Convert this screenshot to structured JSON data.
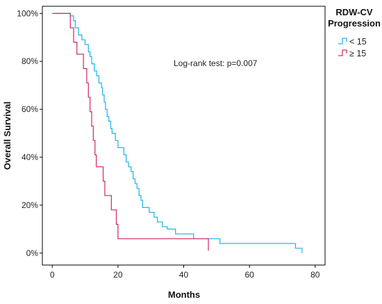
{
  "chart_data": {
    "type": "line",
    "subtype": "kaplan-meier step",
    "title": "",
    "xlabel": "Months",
    "ylabel": "Overall Survival",
    "xlim": [
      -3,
      83
    ],
    "ylim": [
      -5,
      103
    ],
    "x_ticks": [
      0,
      20,
      40,
      60,
      80
    ],
    "y_ticks": [
      0,
      20,
      40,
      60,
      80,
      100
    ],
    "y_tick_labels": [
      "0%",
      "20%",
      "40%",
      "60%",
      "80%",
      "100%"
    ],
    "grid": false,
    "legend": {
      "title_line1": "RDW-CV",
      "title_line2": "Progression",
      "placement": "top-right outside"
    },
    "annotation": "Log-rank test: p=0.007",
    "series": [
      {
        "name": "< 15",
        "color": "#29b8e6",
        "points": [
          [
            0,
            100
          ],
          [
            5.5,
            100
          ],
          [
            5.5,
            99
          ],
          [
            6.5,
            99
          ],
          [
            6.5,
            97
          ],
          [
            7,
            97
          ],
          [
            7,
            94
          ],
          [
            8,
            94
          ],
          [
            8,
            91
          ],
          [
            9,
            91
          ],
          [
            9,
            89
          ],
          [
            10,
            89
          ],
          [
            10,
            87
          ],
          [
            11,
            87
          ],
          [
            11,
            84
          ],
          [
            11.5,
            84
          ],
          [
            11.5,
            82
          ],
          [
            12,
            82
          ],
          [
            12,
            79
          ],
          [
            12.8,
            79
          ],
          [
            12.8,
            76
          ],
          [
            13.5,
            76
          ],
          [
            13.5,
            74
          ],
          [
            14.2,
            74
          ],
          [
            14.2,
            71
          ],
          [
            15,
            71
          ],
          [
            15,
            69
          ],
          [
            15.3,
            69
          ],
          [
            15.3,
            66
          ],
          [
            15.8,
            66
          ],
          [
            15.8,
            63
          ],
          [
            16.2,
            63
          ],
          [
            16.2,
            60
          ],
          [
            16.7,
            60
          ],
          [
            16.7,
            57
          ],
          [
            17.2,
            57
          ],
          [
            17.2,
            55
          ],
          [
            17.8,
            55
          ],
          [
            17.8,
            52
          ],
          [
            18.2,
            52
          ],
          [
            18.2,
            50
          ],
          [
            19.2,
            50
          ],
          [
            19.2,
            47
          ],
          [
            20,
            47
          ],
          [
            20,
            44
          ],
          [
            21.8,
            44
          ],
          [
            21.8,
            41
          ],
          [
            22.5,
            41
          ],
          [
            22.5,
            38
          ],
          [
            23.2,
            38
          ],
          [
            23.2,
            36
          ],
          [
            24,
            36
          ],
          [
            24,
            34
          ],
          [
            24.6,
            34
          ],
          [
            24.6,
            31
          ],
          [
            25.2,
            31
          ],
          [
            25.2,
            29
          ],
          [
            25.8,
            29
          ],
          [
            25.8,
            27
          ],
          [
            26.4,
            27
          ],
          [
            26.4,
            24
          ],
          [
            27,
            24
          ],
          [
            27,
            22
          ],
          [
            27.5,
            22
          ],
          [
            27.5,
            19
          ],
          [
            29.5,
            19
          ],
          [
            29.5,
            17
          ],
          [
            31,
            17
          ],
          [
            31,
            15
          ],
          [
            32,
            15
          ],
          [
            32,
            13
          ],
          [
            33.5,
            13
          ],
          [
            33.5,
            11
          ],
          [
            35,
            11
          ],
          [
            35,
            10
          ],
          [
            37.5,
            10
          ],
          [
            37.5,
            8
          ],
          [
            43,
            8
          ],
          [
            43,
            6
          ],
          [
            51,
            6
          ],
          [
            51,
            4
          ],
          [
            74,
            4
          ],
          [
            74,
            2
          ],
          [
            76,
            2
          ],
          [
            76,
            0
          ]
        ]
      },
      {
        "name": "≥ 15",
        "color": "#d6336c",
        "points": [
          [
            0,
            100
          ],
          [
            5.5,
            100
          ],
          [
            5.5,
            94
          ],
          [
            6.5,
            94
          ],
          [
            6.5,
            88
          ],
          [
            7.5,
            88
          ],
          [
            7.5,
            83
          ],
          [
            9.5,
            83
          ],
          [
            9.5,
            77
          ],
          [
            10.5,
            77
          ],
          [
            10.5,
            71
          ],
          [
            11,
            71
          ],
          [
            11,
            65
          ],
          [
            11.5,
            65
          ],
          [
            11.5,
            59
          ],
          [
            12,
            59
          ],
          [
            12,
            53
          ],
          [
            12.5,
            53
          ],
          [
            12.5,
            47
          ],
          [
            13,
            47
          ],
          [
            13,
            41
          ],
          [
            13.4,
            41
          ],
          [
            13.4,
            36
          ],
          [
            15.5,
            36
          ],
          [
            15.5,
            30
          ],
          [
            16,
            30
          ],
          [
            16,
            24
          ],
          [
            18,
            24
          ],
          [
            18,
            18
          ],
          [
            19.5,
            18
          ],
          [
            19.5,
            12
          ],
          [
            20,
            12
          ],
          [
            20,
            6
          ],
          [
            47.5,
            6
          ],
          [
            47.5,
            1
          ]
        ]
      }
    ]
  }
}
